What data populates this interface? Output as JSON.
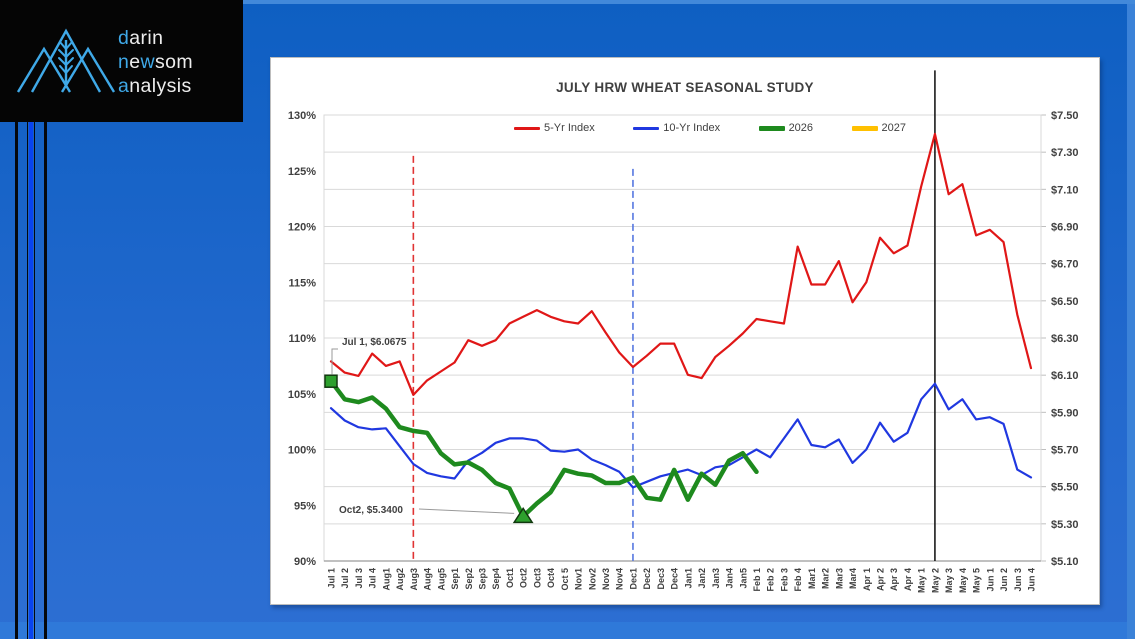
{
  "theme": {
    "background_blue": "#1565cb",
    "accent_blue": "#3fa9e8",
    "bright_blue_stripe": "#0843f0",
    "card_background": "#ffffff",
    "grid_color": "#d9d9d9",
    "axis_text_color": "#404040"
  },
  "branding": {
    "logo_lines": [
      [
        {
          "t": "d",
          "accent": true
        },
        {
          "t": "arin",
          "accent": false
        }
      ],
      [
        {
          "t": "n",
          "accent": true
        },
        {
          "t": "e",
          "accent": false
        },
        {
          "t": "w",
          "accent": true
        },
        {
          "t": "som",
          "accent": false
        }
      ],
      [
        {
          "t": "a",
          "accent": true
        },
        {
          "t": "nalysis",
          "accent": false
        }
      ]
    ]
  },
  "chart_data": {
    "type": "line",
    "title": "JULY HRW WHEAT SEASONAL STUDY",
    "grid": "horizontal",
    "legend_position": "top",
    "categories": [
      "Jul 1",
      "Jul 2",
      "Jul 3",
      "Jul 4",
      "Aug1",
      "Aug2",
      "Aug3",
      "Aug4",
      "Aug5",
      "Sep1",
      "Sep2",
      "Sep3",
      "Sep4",
      "Oct1",
      "Oct2",
      "Oct3",
      "Oct4",
      "Oct 5",
      "Nov1",
      "Nov2",
      "Nov3",
      "Nov4",
      "Dec1",
      "Dec2",
      "Dec3",
      "Dec4",
      "Jan1",
      "Jan2",
      "Jan3",
      "Jan4",
      "Jan5",
      "Feb 1",
      "Feb 2",
      "Feb 3",
      "Feb 4",
      "Mar1",
      "Mar2",
      "Mar3",
      "Mar4",
      "Apr 1",
      "Apr 2",
      "Apr 3",
      "Apr 4",
      "May 1",
      "May 2",
      "May 3",
      "May 4",
      "May 5",
      "Jun 1",
      "Jun 2",
      "Jun 3",
      "Jun 4"
    ],
    "left_axis": {
      "title": "index percent",
      "min": 90,
      "max": 130,
      "step": 5,
      "labels": [
        "130%",
        "125%",
        "120%",
        "115%",
        "110%",
        "105%",
        "100%",
        "95%",
        "90%"
      ]
    },
    "right_axis": {
      "title": "price dollars",
      "min": 5.1,
      "max": 7.5,
      "step": 0.2,
      "labels": [
        "$7.50",
        "$7.30",
        "$7.10",
        "$6.90",
        "$6.70",
        "$6.50",
        "$6.30",
        "$6.10",
        "$5.90",
        "$5.70",
        "$5.50",
        "$5.30",
        "$5.10"
      ]
    },
    "series": [
      {
        "name": "5-Yr Index",
        "axis": "percent",
        "color": "#e01717",
        "width": 2.2,
        "values": [
          107.9,
          106.9,
          106.6,
          108.6,
          107.5,
          107.9,
          104.9,
          106.2,
          107.0,
          107.8,
          109.8,
          109.3,
          109.8,
          111.3,
          111.9,
          112.5,
          111.9,
          111.5,
          111.3,
          112.4,
          110.5,
          108.7,
          107.4,
          108.4,
          109.5,
          109.5,
          106.7,
          106.4,
          108.3,
          109.3,
          110.4,
          111.7,
          111.5,
          111.3,
          118.2,
          114.8,
          114.8,
          116.9,
          113.2,
          115.0,
          119.0,
          117.6,
          118.3,
          123.6,
          128.3,
          122.9,
          123.8,
          119.2,
          119.7,
          118.6,
          112.1,
          107.3
        ]
      },
      {
        "name": "10-Yr Index",
        "axis": "percent",
        "color": "#2038e0",
        "width": 2.2,
        "values": [
          103.7,
          102.6,
          102.0,
          101.8,
          101.9,
          100.3,
          98.7,
          97.9,
          97.6,
          97.4,
          99.0,
          99.7,
          100.6,
          101.0,
          101.0,
          100.8,
          99.9,
          99.8,
          100.0,
          99.1,
          98.6,
          98.0,
          96.6,
          97.1,
          97.6,
          97.9,
          98.2,
          97.7,
          98.4,
          98.6,
          99.3,
          100.0,
          99.3,
          101.0,
          102.7,
          100.4,
          100.2,
          100.9,
          98.8,
          100.0,
          102.4,
          100.7,
          101.5,
          104.5,
          105.9,
          103.6,
          104.5,
          102.7,
          102.9,
          102.3,
          98.2,
          97.5
        ]
      },
      {
        "name": "2026",
        "axis": "dollar",
        "color": "#1e8a1e",
        "width": 4.5,
        "values": [
          6.0675,
          5.97,
          5.955,
          5.98,
          5.92,
          5.82,
          5.8,
          5.79,
          5.68,
          5.62,
          5.63,
          5.59,
          5.52,
          5.49,
          5.34,
          5.41,
          5.47,
          5.59,
          5.57,
          5.56,
          5.52,
          5.52,
          5.55,
          5.44,
          5.43,
          5.59,
          5.43,
          5.57,
          5.51,
          5.64,
          5.68,
          5.58
        ]
      },
      {
        "name": "2027",
        "axis": "dollar",
        "color": "#ffc000",
        "width": 4.5,
        "values": []
      }
    ],
    "vlines": [
      {
        "category": "Aug3",
        "style": "dashed",
        "color": "#e03333",
        "from_top_dollar": 7.28
      },
      {
        "category": "Dec1",
        "style": "dashed",
        "color": "#5577e0",
        "from_top_dollar": 7.21
      },
      {
        "category": "May 2",
        "style": "solid",
        "color": "#1a1a1a",
        "from_top_dollar": 7.74
      }
    ],
    "markers": [
      {
        "shape": "square",
        "series": "2026",
        "category": "Jul 1",
        "value": 6.0675,
        "fill": "#2da02d",
        "stroke": "#11380f"
      },
      {
        "shape": "triangle",
        "series": "2026",
        "category": "Oct2",
        "value": 5.34,
        "fill": "#2da02d",
        "stroke": "#11380f"
      }
    ],
    "annotations": [
      {
        "text": "Jul 1, $6.0675",
        "target_category": "Jul 1",
        "target_value": 6.0675
      },
      {
        "text": "Oct2, $5.3400",
        "target_category": "Oct2",
        "target_value": 5.34
      }
    ]
  }
}
